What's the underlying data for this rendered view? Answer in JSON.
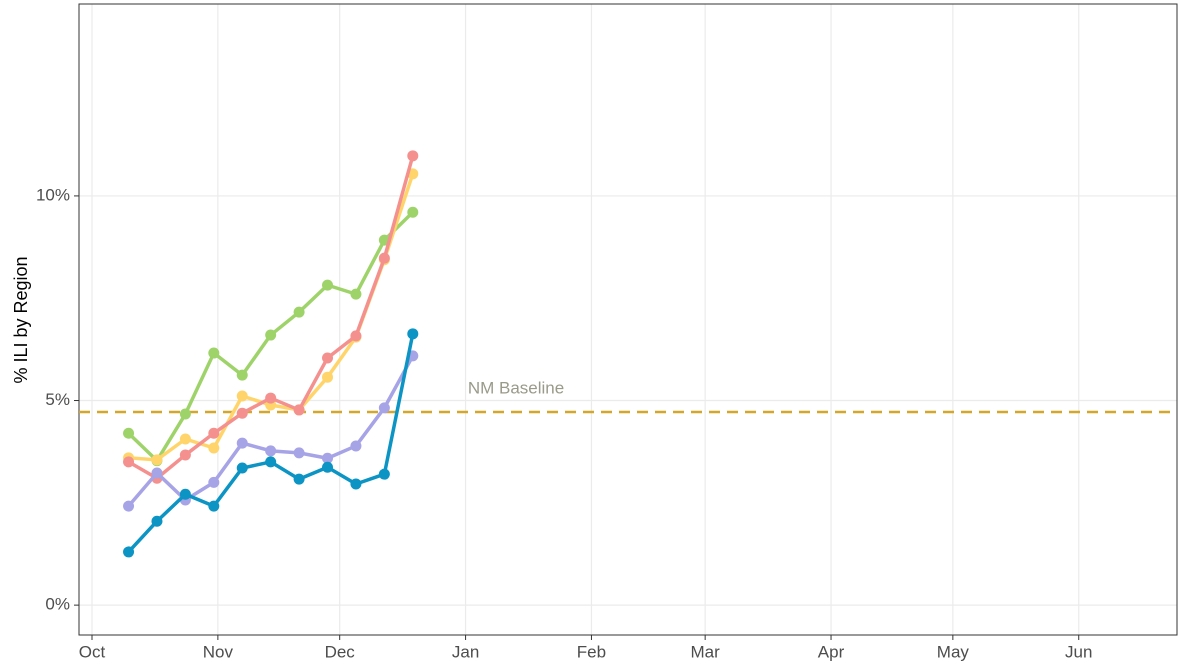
{
  "chart_data": {
    "type": "line",
    "y_label": "% ILI by Region",
    "x": [
      9,
      16,
      23,
      30,
      37,
      44,
      51,
      58,
      65,
      72,
      79
    ],
    "series": [
      {
        "color": "#9ed36a",
        "values": [
          4.2,
          3.53,
          4.67,
          6.16,
          5.62,
          6.6,
          7.16,
          7.82,
          7.6,
          8.92,
          9.6
        ]
      },
      {
        "color": "#ffd56b",
        "values": [
          3.6,
          3.55,
          4.06,
          3.84,
          5.11,
          4.89,
          4.77,
          5.57,
          6.55,
          8.44,
          10.54
        ]
      },
      {
        "color": "#f4908e",
        "values": [
          3.5,
          3.1,
          3.67,
          4.2,
          4.69,
          5.06,
          4.77,
          6.04,
          6.58,
          8.48,
          10.98
        ]
      },
      {
        "color": "#a6a3e6",
        "values": [
          2.42,
          3.23,
          2.57,
          3.0,
          3.96,
          3.77,
          3.72,
          3.59,
          3.89,
          4.82,
          6.09
        ]
      },
      {
        "color": "#0b94c4",
        "values": [
          1.3,
          2.05,
          2.71,
          2.42,
          3.35,
          3.5,
          3.08,
          3.37,
          2.96,
          3.2,
          6.63
        ]
      }
    ],
    "baseline": {
      "label": "NM Baseline",
      "value": 4.72,
      "color": "#d4a62a"
    },
    "xlim": [
      -3.2,
      267.2
    ],
    "xticks": [
      {
        "value": 0,
        "label": "Oct"
      },
      {
        "value": 31,
        "label": "Nov"
      },
      {
        "value": 61,
        "label": "Dec"
      },
      {
        "value": 92,
        "label": "Jan"
      },
      {
        "value": 123,
        "label": "Feb"
      },
      {
        "value": 151,
        "label": "Mar"
      },
      {
        "value": 182,
        "label": "Apr"
      },
      {
        "value": 212,
        "label": "May"
      },
      {
        "value": 243,
        "label": "Jun"
      }
    ],
    "ylim": [
      -0.73,
      14.69
    ],
    "yticks": [
      {
        "value": 0,
        "label": "0%"
      },
      {
        "value": 5,
        "label": "5%"
      },
      {
        "value": 10,
        "label": "10%"
      }
    ],
    "grid": true
  }
}
